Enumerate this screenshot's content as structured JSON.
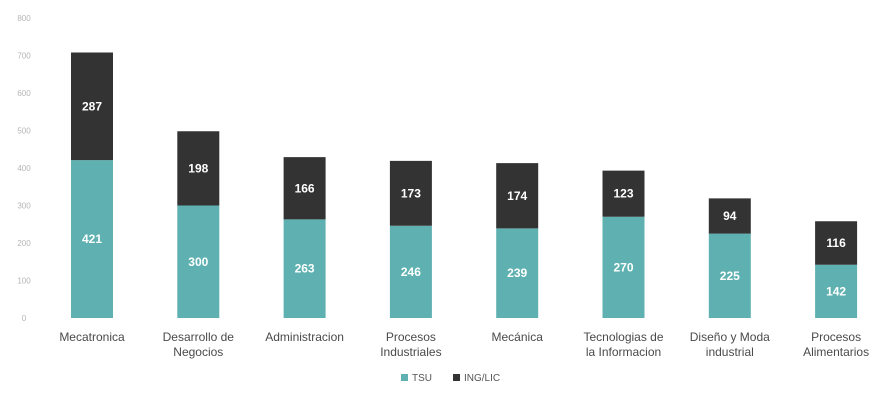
{
  "chart_data": {
    "type": "bar",
    "stacked": true,
    "categories": [
      [
        "Mecatronica"
      ],
      [
        "Desarrollo de",
        "Negocios"
      ],
      [
        "Administracion"
      ],
      [
        "Procesos",
        "Industriales"
      ],
      [
        "Mecánica"
      ],
      [
        "Tecnologias de",
        "la Informacion"
      ],
      [
        "Diseño y Moda",
        "industrial"
      ],
      [
        "Procesos",
        "Alimentarios"
      ]
    ],
    "series": [
      {
        "name": "TSU",
        "values": [
          421,
          300,
          263,
          246,
          239,
          270,
          225,
          142
        ],
        "color": "#5fb1b1"
      },
      {
        "name": "ING/LIC",
        "values": [
          287,
          198,
          166,
          173,
          174,
          123,
          94,
          116
        ],
        "color": "#333333"
      }
    ],
    "ylim": [
      0,
      800
    ],
    "yticks": [
      "0",
      "100",
      "200",
      "300",
      "400",
      "500",
      "600",
      "700",
      "800"
    ],
    "grid": false,
    "legend_position": "bottom-center",
    "title": "",
    "xlabel": "",
    "ylabel": ""
  }
}
